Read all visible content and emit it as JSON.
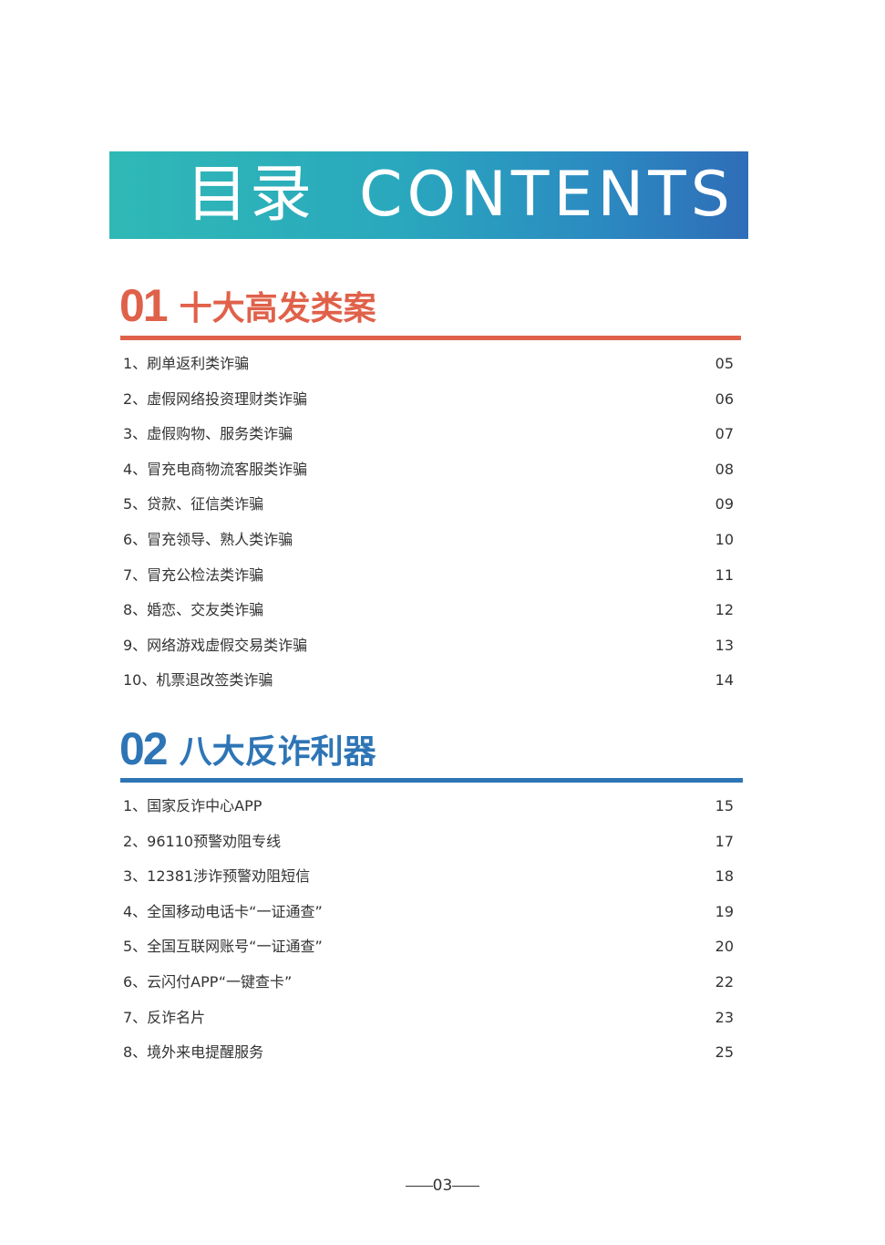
{
  "banner": {
    "title_cn": "目录",
    "title_en": "CONTENTS"
  },
  "colors": {
    "section1": "#e0614a",
    "section2": "#2e75b6",
    "banner_start": "#2fb9b6",
    "banner_end": "#2f6db8"
  },
  "sections": [
    {
      "number": "01",
      "title": "十大高发类案",
      "items": [
        {
          "label": "1、刷单返利类诈骗",
          "page": "05"
        },
        {
          "label": "2、虚假网络投资理财类诈骗",
          "page": "06"
        },
        {
          "label": "3、虚假购物、服务类诈骗",
          "page": "07"
        },
        {
          "label": "4、冒充电商物流客服类诈骗",
          "page": "08"
        },
        {
          "label": "5、贷款、征信类诈骗",
          "page": "09"
        },
        {
          "label": "6、冒充领导、熟人类诈骗",
          "page": "10"
        },
        {
          "label": "7、冒充公检法类诈骗",
          "page": "11"
        },
        {
          "label": "8、婚恋、交友类诈骗",
          "page": "12"
        },
        {
          "label": "9、网络游戏虚假交易类诈骗",
          "page": "13"
        },
        {
          "label": "10、机票退改签类诈骗",
          "page": "14"
        }
      ]
    },
    {
      "number": "02",
      "title": "八大反诈利器",
      "items": [
        {
          "label": "1、国家反诈中心APP",
          "page": "15"
        },
        {
          "label": "2、96110预警劝阻专线",
          "page": "17"
        },
        {
          "label": "3、12381涉诈预警劝阻短信",
          "page": "18"
        },
        {
          "label": "4、全国移动电话卡“一证通查”",
          "page": "19"
        },
        {
          "label": "5、全国互联网账号“一证通查”",
          "page": "20"
        },
        {
          "label": "6、云闪付APP“一键查卡”",
          "page": "22"
        },
        {
          "label": "7、反诈名片",
          "page": "23"
        },
        {
          "label": "8、境外来电提醒服务",
          "page": "25"
        }
      ]
    }
  ],
  "footer": {
    "page_number": "03"
  }
}
